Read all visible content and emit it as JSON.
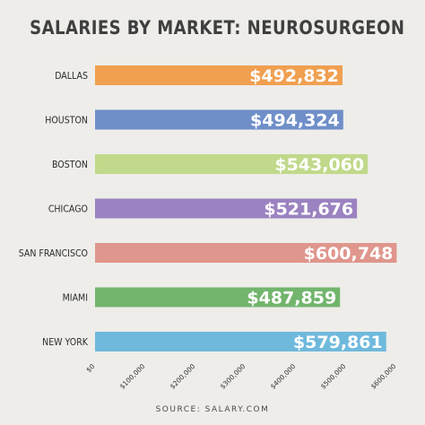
{
  "chart_data": {
    "type": "bar",
    "orientation": "horizontal",
    "title": "SALARIES BY MARKET: NEUROSURGEON",
    "categories": [
      "DALLAS",
      "HOUSTON",
      "BOSTON",
      "CHICAGO",
      "SAN FRANCISCO",
      "MIAMI",
      "NEW YORK"
    ],
    "values": [
      492832,
      494324,
      543060,
      521676,
      600748,
      487859,
      579861
    ],
    "value_labels": [
      "$492,832",
      "$494,324",
      "$543,060",
      "$521,676",
      "$600,748",
      "$487,859",
      "$579,861"
    ],
    "bar_colors": [
      "#f0a050",
      "#6f8fc9",
      "#c0d98a",
      "#9b82c0",
      "#df968c",
      "#72b56d",
      "#6fb9dc"
    ],
    "xlim": [
      0,
      600000
    ],
    "x_ticks": [
      0,
      100000,
      200000,
      300000,
      400000,
      500000,
      600000
    ],
    "x_tick_labels": [
      "$0",
      "$100,000",
      "$200,000",
      "$300,000",
      "$400,000",
      "$500,000",
      "$600,000"
    ],
    "grid": false
  },
  "source": "SOURCE: SALARY.COM"
}
